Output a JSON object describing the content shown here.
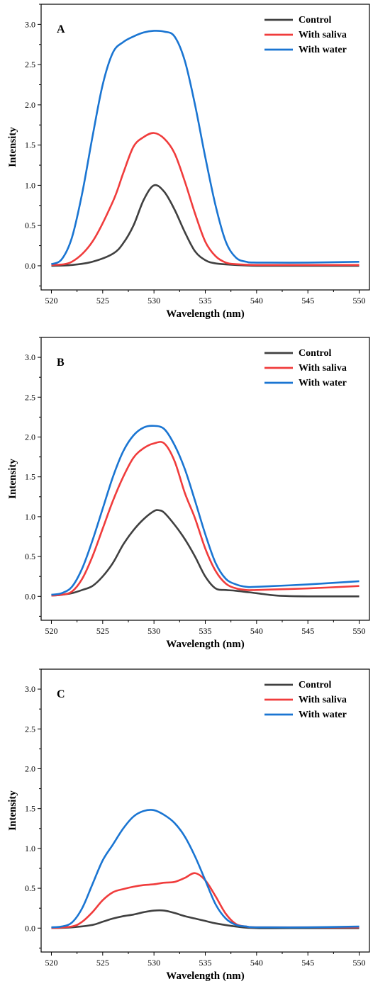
{
  "figure": {
    "colors": {
      "Control": "#404040",
      "With saliva": "#f03c3c",
      "With water": "#1a75d2"
    }
  },
  "chart_data": [
    {
      "type": "line",
      "panel_label": "A",
      "xlabel": "Wavelength (nm)",
      "ylabel": "Intensity",
      "xlim": [
        519,
        551
      ],
      "ylim": [
        -0.3,
        3.25
      ],
      "xticks": [
        520,
        525,
        530,
        535,
        540,
        545,
        550
      ],
      "yticks": [
        0.0,
        0.5,
        1.0,
        1.5,
        2.0,
        2.5,
        3.0
      ],
      "xtick_labels": [
        "520",
        "525",
        "530",
        "535",
        "540",
        "545",
        "550"
      ],
      "ytick_labels": [
        "0.0",
        "0.5",
        "1.0",
        "1.5",
        "2.0",
        "2.5",
        "3.0"
      ],
      "legend_position": "top-right",
      "series": [
        {
          "name": "Control",
          "color": "#404040",
          "x": [
            520,
            522,
            524,
            526,
            527,
            528,
            529,
            530,
            531,
            532,
            533,
            534,
            535,
            536,
            538,
            540,
            545,
            550
          ],
          "y": [
            0.0,
            0.01,
            0.05,
            0.15,
            0.28,
            0.5,
            0.82,
            1.0,
            0.92,
            0.7,
            0.42,
            0.18,
            0.07,
            0.03,
            0.01,
            0.0,
            0.0,
            0.0
          ]
        },
        {
          "name": "With saliva",
          "color": "#f03c3c",
          "x": [
            520,
            522,
            524,
            526,
            527,
            528,
            529,
            530,
            531,
            532,
            533,
            534,
            535,
            536,
            537,
            538,
            540,
            545,
            550
          ],
          "y": [
            0.01,
            0.05,
            0.3,
            0.8,
            1.15,
            1.48,
            1.6,
            1.65,
            1.58,
            1.4,
            1.05,
            0.65,
            0.3,
            0.12,
            0.04,
            0.02,
            0.01,
            0.01,
            0.01
          ]
        },
        {
          "name": "With water",
          "color": "#1a75d2",
          "x": [
            520,
            521,
            522,
            523,
            524,
            525,
            526,
            527,
            528,
            529,
            530,
            531,
            532,
            533,
            534,
            535,
            536,
            537,
            538,
            539,
            540,
            545,
            550
          ],
          "y": [
            0.02,
            0.08,
            0.35,
            0.9,
            1.6,
            2.25,
            2.65,
            2.78,
            2.85,
            2.9,
            2.92,
            2.91,
            2.85,
            2.55,
            2.0,
            1.35,
            0.75,
            0.3,
            0.1,
            0.05,
            0.04,
            0.04,
            0.05
          ]
        }
      ]
    },
    {
      "type": "line",
      "panel_label": "B",
      "xlabel": "Wavelength (nm)",
      "ylabel": "Intensity",
      "xlim": [
        519,
        551
      ],
      "ylim": [
        -0.3,
        3.25
      ],
      "xticks": [
        520,
        525,
        530,
        535,
        540,
        545,
        550
      ],
      "yticks": [
        0.0,
        0.5,
        1.0,
        1.5,
        2.0,
        2.5,
        3.0
      ],
      "xtick_labels": [
        "520",
        "525",
        "530",
        "535",
        "540",
        "545",
        "550"
      ],
      "ytick_labels": [
        "0.0",
        "0.5",
        "1.0",
        "1.5",
        "2.0",
        "2.5",
        "3.0"
      ],
      "legend_position": "top-right",
      "series": [
        {
          "name": "Control",
          "color": "#404040",
          "x": [
            520,
            521,
            522,
            523,
            524,
            525,
            526,
            527,
            528,
            529,
            530,
            530.5,
            531,
            532,
            533,
            534,
            535,
            536,
            537,
            538,
            540,
            542,
            545,
            550
          ],
          "y": [
            0.01,
            0.02,
            0.04,
            0.08,
            0.13,
            0.25,
            0.42,
            0.65,
            0.83,
            0.97,
            1.07,
            1.08,
            1.05,
            0.9,
            0.72,
            0.5,
            0.25,
            0.1,
            0.08,
            0.07,
            0.04,
            0.01,
            0.0,
            0.0
          ]
        },
        {
          "name": "With saliva",
          "color": "#f03c3c",
          "x": [
            520,
            521,
            522,
            523,
            524,
            525,
            526,
            527,
            528,
            529,
            530,
            531,
            532,
            533,
            534,
            535,
            536,
            537,
            538,
            539,
            540,
            545,
            550
          ],
          "y": [
            0.01,
            0.02,
            0.06,
            0.22,
            0.5,
            0.85,
            1.2,
            1.5,
            1.74,
            1.86,
            1.92,
            1.92,
            1.7,
            1.3,
            0.98,
            0.6,
            0.32,
            0.16,
            0.1,
            0.08,
            0.08,
            0.1,
            0.13
          ]
        },
        {
          "name": "With water",
          "color": "#1a75d2",
          "x": [
            520,
            521,
            522,
            523,
            524,
            525,
            526,
            527,
            528,
            529,
            530,
            531,
            532,
            533,
            534,
            535,
            536,
            537,
            538,
            539,
            540,
            545,
            550
          ],
          "y": [
            0.02,
            0.04,
            0.12,
            0.35,
            0.7,
            1.1,
            1.5,
            1.82,
            2.02,
            2.12,
            2.14,
            2.1,
            1.9,
            1.6,
            1.2,
            0.78,
            0.42,
            0.22,
            0.15,
            0.12,
            0.12,
            0.15,
            0.19
          ]
        }
      ]
    },
    {
      "type": "line",
      "panel_label": "C",
      "xlabel": "Wavelength (nm)",
      "ylabel": "Intensity",
      "xlim": [
        519,
        551
      ],
      "ylim": [
        -0.3,
        3.25
      ],
      "xticks": [
        520,
        525,
        530,
        535,
        540,
        545,
        550
      ],
      "yticks": [
        0.0,
        0.5,
        1.0,
        1.5,
        2.0,
        2.5,
        3.0
      ],
      "xtick_labels": [
        "520",
        "525",
        "530",
        "535",
        "540",
        "545",
        "550"
      ],
      "ytick_labels": [
        "0.0",
        "0.5",
        "1.0",
        "1.5",
        "2.0",
        "2.5",
        "3.0"
      ],
      "legend_position": "top-right",
      "series": [
        {
          "name": "Control",
          "color": "#404040",
          "x": [
            520,
            522,
            524,
            525,
            526,
            527,
            528,
            529,
            530,
            531,
            532,
            533,
            534,
            535,
            536,
            538,
            540,
            545,
            550
          ],
          "y": [
            0.0,
            0.01,
            0.04,
            0.08,
            0.12,
            0.15,
            0.17,
            0.2,
            0.22,
            0.22,
            0.19,
            0.15,
            0.12,
            0.09,
            0.06,
            0.02,
            0.0,
            0.0,
            0.0
          ]
        },
        {
          "name": "With saliva",
          "color": "#f03c3c",
          "x": [
            520,
            522,
            523,
            524,
            525,
            526,
            527,
            528,
            529,
            530,
            531,
            532,
            533,
            534,
            535,
            536,
            537,
            538,
            539,
            540,
            545,
            550
          ],
          "y": [
            0.0,
            0.02,
            0.08,
            0.2,
            0.35,
            0.45,
            0.49,
            0.52,
            0.54,
            0.55,
            0.57,
            0.58,
            0.63,
            0.69,
            0.6,
            0.4,
            0.18,
            0.05,
            0.02,
            0.01,
            0.01,
            0.01
          ]
        },
        {
          "name": "With water",
          "color": "#1a75d2",
          "x": [
            520,
            521,
            522,
            523,
            524,
            525,
            526,
            527,
            528,
            529,
            530,
            531,
            532,
            533,
            534,
            535,
            536,
            537,
            538,
            539,
            540,
            545,
            550
          ],
          "y": [
            0.01,
            0.02,
            0.07,
            0.25,
            0.55,
            0.85,
            1.05,
            1.25,
            1.4,
            1.47,
            1.48,
            1.42,
            1.32,
            1.15,
            0.9,
            0.6,
            0.3,
            0.12,
            0.04,
            0.02,
            0.01,
            0.01,
            0.02
          ]
        }
      ]
    }
  ]
}
